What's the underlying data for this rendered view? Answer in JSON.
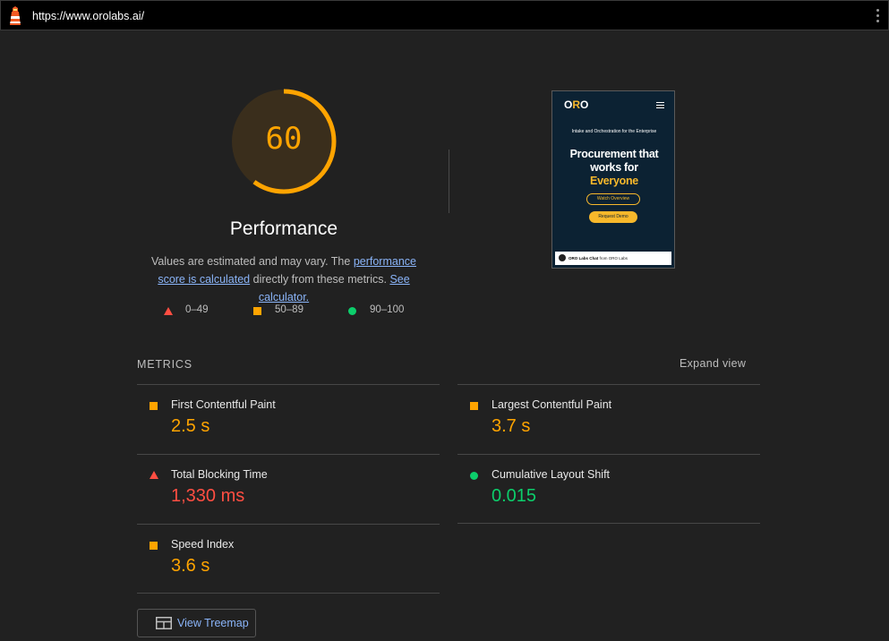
{
  "header": {
    "url": "https://www.orolabs.ai/",
    "logo_icon": "lighthouse-icon",
    "menu_icon": "kebab-menu-icon"
  },
  "score": {
    "value": "60",
    "fraction": 0.6,
    "color": "#ffa400",
    "title": "Performance"
  },
  "description": {
    "text1": "Values are estimated and may vary. The ",
    "link1": "performance score is calculated",
    "text2": " directly from these metrics. ",
    "link2": "See calculator."
  },
  "legend": [
    {
      "shape": "triangle",
      "color": "#ff4e42",
      "label": "0–49"
    },
    {
      "shape": "square",
      "color": "#ffa400",
      "label": "50–89"
    },
    {
      "shape": "circle",
      "color": "#0cce6b",
      "label": "90–100"
    }
  ],
  "screenshot": {
    "logo_o": "O",
    "logo_r": "R",
    "logo_o2": "O",
    "subtitle": "Intake and Orchestration for the Enterprise",
    "headline_line1": "Procurement that",
    "headline_line2": "works for",
    "headline_line3": "Everyone",
    "button1": "Watch Overview",
    "button2": "Request Demo",
    "chat_bold": "ORO Labs Chat",
    "chat_rest": " from ORO Labs"
  },
  "metrics": {
    "header": "METRICS",
    "expand_label": "Expand view",
    "items": [
      {
        "name": "First Contentful Paint",
        "value": "2.5 s",
        "rating": "average"
      },
      {
        "name": "Largest Contentful Paint",
        "value": "3.7 s",
        "rating": "average"
      },
      {
        "name": "Total Blocking Time",
        "value": "1,330 ms",
        "rating": "fail"
      },
      {
        "name": "Cumulative Layout Shift",
        "value": "0.015",
        "rating": "pass"
      },
      {
        "name": "Speed Index",
        "value": "3.6 s",
        "rating": "average"
      }
    ]
  },
  "treemap": {
    "label": "View Treemap",
    "icon": "treemap-icon"
  }
}
